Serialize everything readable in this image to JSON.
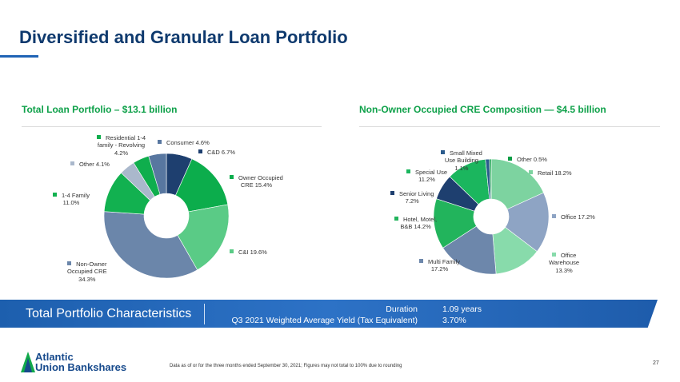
{
  "title": "Diversified and Granular Loan Portfolio",
  "chart_data": [
    {
      "type": "pie",
      "title": "Total Loan Portfolio – $13.1 billion",
      "slices": [
        {
          "label": "C&D",
          "value": 6.7,
          "color": "#1e3f6f"
        },
        {
          "label": "Owner Occupied CRE",
          "value": 15.4,
          "color": "#0cad4c"
        },
        {
          "label": "C&I",
          "value": 19.6,
          "color": "#5acb86"
        },
        {
          "label": "Non-Owner Occupied CRE",
          "value": 34.3,
          "color": "#6b86aa"
        },
        {
          "label": "1-4 Family",
          "value": 11.0,
          "color": "#12b150"
        },
        {
          "label": "Other",
          "value": 4.1,
          "color": "#aab8cc"
        },
        {
          "label": "Residential 1-4 family - Revolving",
          "value": 4.2,
          "color": "#0fae4d"
        },
        {
          "label": "Consumer",
          "value": 4.6,
          "color": "#5877a0"
        }
      ],
      "display": [
        "C&D 6.7%",
        "Owner Occupied CRE 15.4%",
        "C&I 19.6%",
        "Non-Owner Occupied CRE 34.3%",
        "1-4 Family 11.0%",
        "Other 4.1%",
        "Residential 1-4 family - Revolving 4.2%",
        "Consumer 4.6%"
      ]
    },
    {
      "type": "pie",
      "title": "Non-Owner Occupied CRE Composition — $4.5 billion",
      "slices": [
        {
          "label": "Retail",
          "value": 18.2,
          "color": "#7dd3a0"
        },
        {
          "label": "Office",
          "value": 17.2,
          "color": "#8ea4c4"
        },
        {
          "label": "Office Warehouse",
          "value": 13.3,
          "color": "#88dbab"
        },
        {
          "label": "Multi Family",
          "value": 17.2,
          "color": "#6d87ab"
        },
        {
          "label": "Hotel, Motel, B&B",
          "value": 14.2,
          "color": "#22b45c"
        },
        {
          "label": "Senior Living",
          "value": 7.2,
          "color": "#1e3f6f"
        },
        {
          "label": "Special Use",
          "value": 11.2,
          "color": "#1bb65e"
        },
        {
          "label": "Small Mixed Use Building",
          "value": 1.1,
          "color": "#2b5b8c"
        },
        {
          "label": "Other",
          "value": 0.5,
          "color": "#0c9d45"
        }
      ],
      "display": [
        "Retail 18.2%",
        "Office 17.2%",
        "Office Warehouse 13.3%",
        "Multi Family 17.2%",
        "Hotel, Motel, B&B 14.2%",
        "Senior Living 7.2%",
        "Special Use 11.2%",
        "Small Mixed Use Building 1.1%",
        "Other 0.5%"
      ]
    }
  ],
  "band": {
    "title": "Total Portfolio Characteristics",
    "duration_label": "Duration",
    "duration_value": "1.09 years",
    "yield_label": "Q3 2021 Weighted Average Yield (Tax Equivalent)",
    "yield_value": "3.70%"
  },
  "logo": {
    "line1": "Atlantic",
    "line2": "Union Bankshares"
  },
  "footnote": "Data as of or for the three months ended September 30, 2021; Figures may not total to 100% due to rounding",
  "page": "27"
}
